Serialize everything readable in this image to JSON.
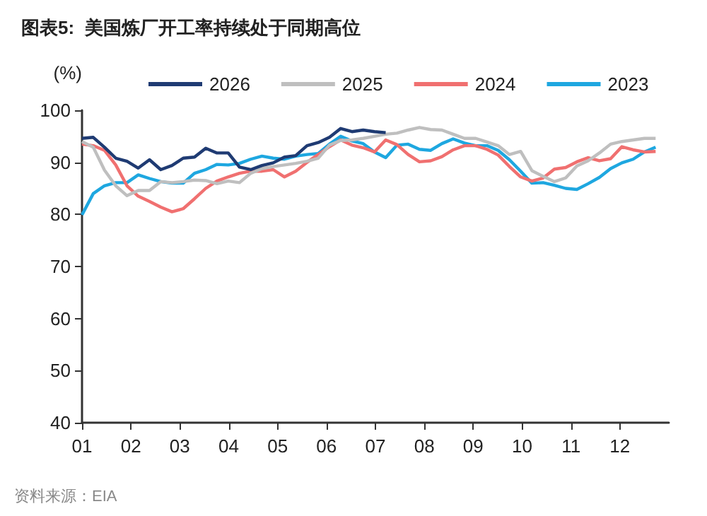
{
  "chart_data": {
    "type": "line",
    "title": "图表5:  美国炼厂开工率持续处于同期高位",
    "ylabel": "(%)",
    "annotations": [
      "资料来源：EIA"
    ],
    "x": [
      1,
      1.23,
      1.46,
      1.69,
      1.92,
      2.15,
      2.38,
      2.61,
      2.84,
      3.07,
      3.3,
      3.53,
      3.76,
      3.99,
      4.22,
      4.45,
      4.68,
      4.91,
      5.14,
      5.37,
      5.6,
      5.83,
      6.06,
      6.29,
      6.52,
      6.75,
      6.98,
      7.21,
      7.44,
      7.67,
      7.9,
      8.13,
      8.36,
      8.59,
      8.82,
      9.05,
      9.28,
      9.51,
      9.74,
      9.97,
      10.2,
      10.43,
      10.66,
      10.89,
      11.12,
      11.35,
      11.58,
      11.81,
      12.04,
      12.27,
      12.5,
      12.73
    ],
    "series": [
      {
        "name": "2026",
        "color": "#1f3b73",
        "values": [
          94.6,
          94.8,
          92.9,
          90.8,
          90.2,
          88.9,
          90.5,
          88.6,
          89.4,
          90.8,
          91.0,
          92.7,
          91.8,
          91.8,
          89.1,
          88.6,
          89.4,
          89.9,
          91.0,
          91.3,
          93.2,
          93.8,
          94.8,
          96.5,
          95.9,
          96.2,
          95.9,
          95.7,
          null,
          null,
          null,
          null,
          null,
          null,
          null,
          null,
          null,
          null,
          null,
          null,
          null,
          null,
          null,
          null,
          null,
          null,
          null,
          null,
          null,
          null,
          null,
          null
        ]
      },
      {
        "name": "2025",
        "color": "#bfbfbf",
        "values": [
          94.0,
          92.9,
          88.5,
          85.5,
          83.6,
          84.6,
          84.6,
          86.3,
          86.1,
          86.3,
          86.6,
          86.5,
          85.9,
          86.4,
          86.1,
          87.9,
          88.8,
          89.2,
          89.5,
          89.8,
          90.2,
          90.8,
          93.3,
          94.2,
          94.3,
          94.6,
          95.0,
          95.4,
          95.6,
          96.2,
          96.7,
          96.3,
          96.2,
          95.4,
          94.6,
          94.6,
          93.9,
          93.2,
          91.5,
          92.1,
          88.4,
          87.3,
          86.3,
          87.0,
          89.3,
          90.3,
          91.8,
          93.5,
          94.0,
          94.3,
          94.6,
          94.6
        ]
      },
      {
        "name": "2024",
        "color": "#f07070",
        "values": [
          93.5,
          93.2,
          92.3,
          89.5,
          85.5,
          83.5,
          82.5,
          81.4,
          80.5,
          81.1,
          83.0,
          85.0,
          86.4,
          87.2,
          87.9,
          88.3,
          88.3,
          88.6,
          87.2,
          88.3,
          90.0,
          91.5,
          93.0,
          94.3,
          93.3,
          92.8,
          92.0,
          94.3,
          93.4,
          91.5,
          90.1,
          90.3,
          91.1,
          92.4,
          93.2,
          93.2,
          92.5,
          91.4,
          89.2,
          87.2,
          86.4,
          87.0,
          88.7,
          89.0,
          90.1,
          90.9,
          90.3,
          90.7,
          93.0,
          92.4,
          92.0,
          92.1
        ]
      },
      {
        "name": "2023",
        "color": "#1ea7e0",
        "values": [
          79.9,
          84.0,
          85.5,
          86.1,
          86.1,
          87.6,
          86.9,
          86.3,
          86.0,
          86.0,
          87.9,
          88.6,
          89.6,
          89.5,
          89.8,
          90.6,
          91.2,
          90.8,
          90.6,
          91.2,
          91.5,
          91.7,
          93.5,
          95.0,
          94.1,
          93.6,
          92.0,
          90.9,
          93.3,
          93.5,
          92.5,
          92.3,
          93.6,
          94.5,
          93.7,
          93.2,
          93.2,
          92.3,
          90.5,
          88.3,
          86.0,
          86.1,
          85.6,
          85.0,
          84.8,
          85.9,
          87.1,
          88.8,
          89.9,
          90.6,
          92.0,
          92.9
        ]
      }
    ],
    "xlim": [
      1,
      13
    ],
    "ylim": [
      40,
      100
    ],
    "xticks": [
      {
        "value": 1,
        "label": "01"
      },
      {
        "value": 2,
        "label": "02"
      },
      {
        "value": 3,
        "label": "03"
      },
      {
        "value": 4,
        "label": "04"
      },
      {
        "value": 5,
        "label": "05"
      },
      {
        "value": 6,
        "label": "06"
      },
      {
        "value": 7,
        "label": "07"
      },
      {
        "value": 8,
        "label": "08"
      },
      {
        "value": 9,
        "label": "09"
      },
      {
        "value": 10,
        "label": "10"
      },
      {
        "value": 11,
        "label": "11"
      },
      {
        "value": 12,
        "label": "12"
      }
    ],
    "yticks": [
      40,
      50,
      60,
      70,
      80,
      90,
      100
    ],
    "grid": false,
    "legend": "top"
  }
}
